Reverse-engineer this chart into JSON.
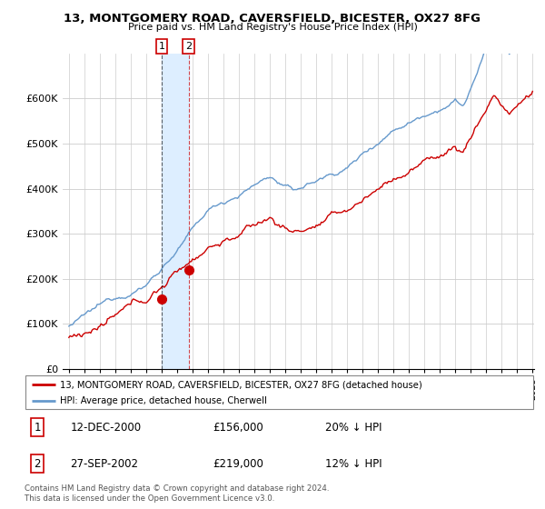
{
  "title": "13, MONTGOMERY ROAD, CAVERSFIELD, BICESTER, OX27 8FG",
  "subtitle": "Price paid vs. HM Land Registry's House Price Index (HPI)",
  "legend_line1": "13, MONTGOMERY ROAD, CAVERSFIELD, BICESTER, OX27 8FG (detached house)",
  "legend_line2": "HPI: Average price, detached house, Cherwell",
  "transaction1_date": "12-DEC-2000",
  "transaction1_price": "£156,000",
  "transaction1_hpi": "20% ↓ HPI",
  "transaction1_year": 2001.0,
  "transaction1_value": 156000,
  "transaction2_date": "27-SEP-2002",
  "transaction2_price": "£219,000",
  "transaction2_hpi": "12% ↓ HPI",
  "transaction2_year": 2002.75,
  "transaction2_value": 219000,
  "hpi_color": "#6699cc",
  "price_color": "#cc0000",
  "shading_color": "#ddeeff",
  "footer_text": "Contains HM Land Registry data © Crown copyright and database right 2024.\nThis data is licensed under the Open Government Licence v3.0.",
  "ylim": [
    0,
    700000
  ],
  "yticks": [
    0,
    100000,
    200000,
    300000,
    400000,
    500000,
    600000
  ],
  "ytick_labels": [
    "£0",
    "£100K",
    "£200K",
    "£300K",
    "£400K",
    "£500K",
    "£600K"
  ]
}
